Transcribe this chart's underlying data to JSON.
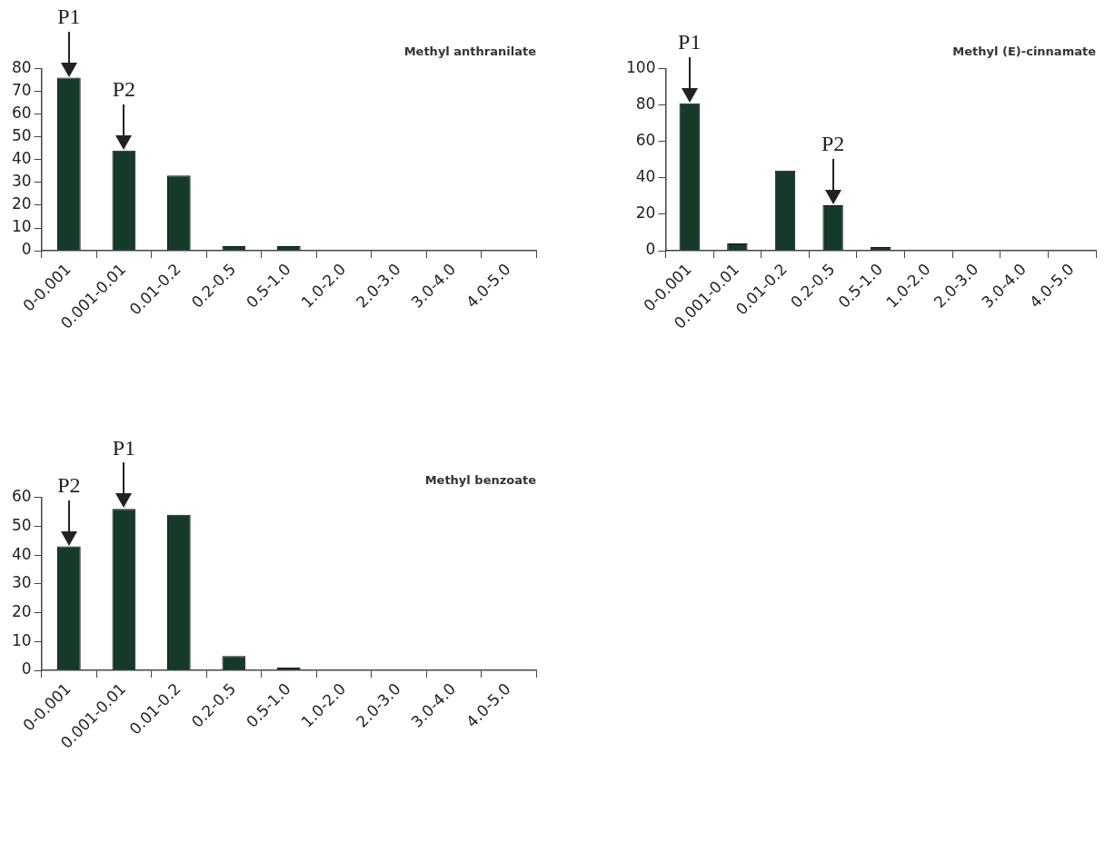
{
  "chart_data": [
    {
      "type": "bar",
      "title": "Methyl anthranilate",
      "categories": [
        "0-0.001",
        "0.001-0.01",
        "0.01-0.2",
        "0.2-0.5",
        "0.5-1.0",
        "1.0-2.0",
        "2.0-3.0",
        "3.0-4.0",
        "4.0-5.0"
      ],
      "values": [
        76,
        44,
        33,
        2,
        2,
        0,
        0,
        0,
        0
      ],
      "color": "#163a2a",
      "ylim": [
        0,
        80
      ],
      "yticks": [
        0,
        10,
        20,
        30,
        40,
        50,
        60,
        70,
        80
      ],
      "grid": false,
      "legend": false,
      "annotations": [
        {
          "text": "P1",
          "x": "0-0.001",
          "y": 76
        },
        {
          "text": "P2",
          "x": "0.001-0.01",
          "y": 44
        }
      ]
    },
    {
      "type": "bar",
      "title": "Methyl (E)-cinnamate",
      "categories": [
        "0-0.001",
        "0.001-0.01",
        "0.01-0.2",
        "0.2-0.5",
        "0.5-1.0",
        "1.0-2.0",
        "2.0-3.0",
        "3.0-4.0",
        "4.0-5.0"
      ],
      "values": [
        81,
        4,
        44,
        25,
        2,
        0,
        0,
        0,
        0
      ],
      "color": "#163a2a",
      "ylim": [
        0,
        100
      ],
      "yticks": [
        0,
        20,
        40,
        60,
        80,
        100
      ],
      "grid": false,
      "legend": false,
      "annotations": [
        {
          "text": "P1",
          "x": "0-0.001",
          "y": 81
        },
        {
          "text": "P2",
          "x": "0.2-0.5",
          "y": 25
        }
      ]
    },
    {
      "type": "bar",
      "title": "Methyl benzoate",
      "categories": [
        "0-0.001",
        "0.001-0.01",
        "0.01-0.2",
        "0.2-0.5",
        "0.5-1.0",
        "1.0-2.0",
        "2.0-3.0",
        "3.0-4.0",
        "4.0-5.0"
      ],
      "values": [
        43,
        56,
        54,
        5,
        1,
        0,
        0,
        0,
        0
      ],
      "color": "#163a2a",
      "ylim": [
        0,
        60
      ],
      "yticks": [
        0,
        10,
        20,
        30,
        40,
        50,
        60
      ],
      "grid": false,
      "legend": false,
      "annotations": [
        {
          "text": "P2",
          "x": "0-0.001",
          "y": 43
        },
        {
          "text": "P1",
          "x": "0.001-0.01",
          "y": 56
        }
      ]
    }
  ]
}
